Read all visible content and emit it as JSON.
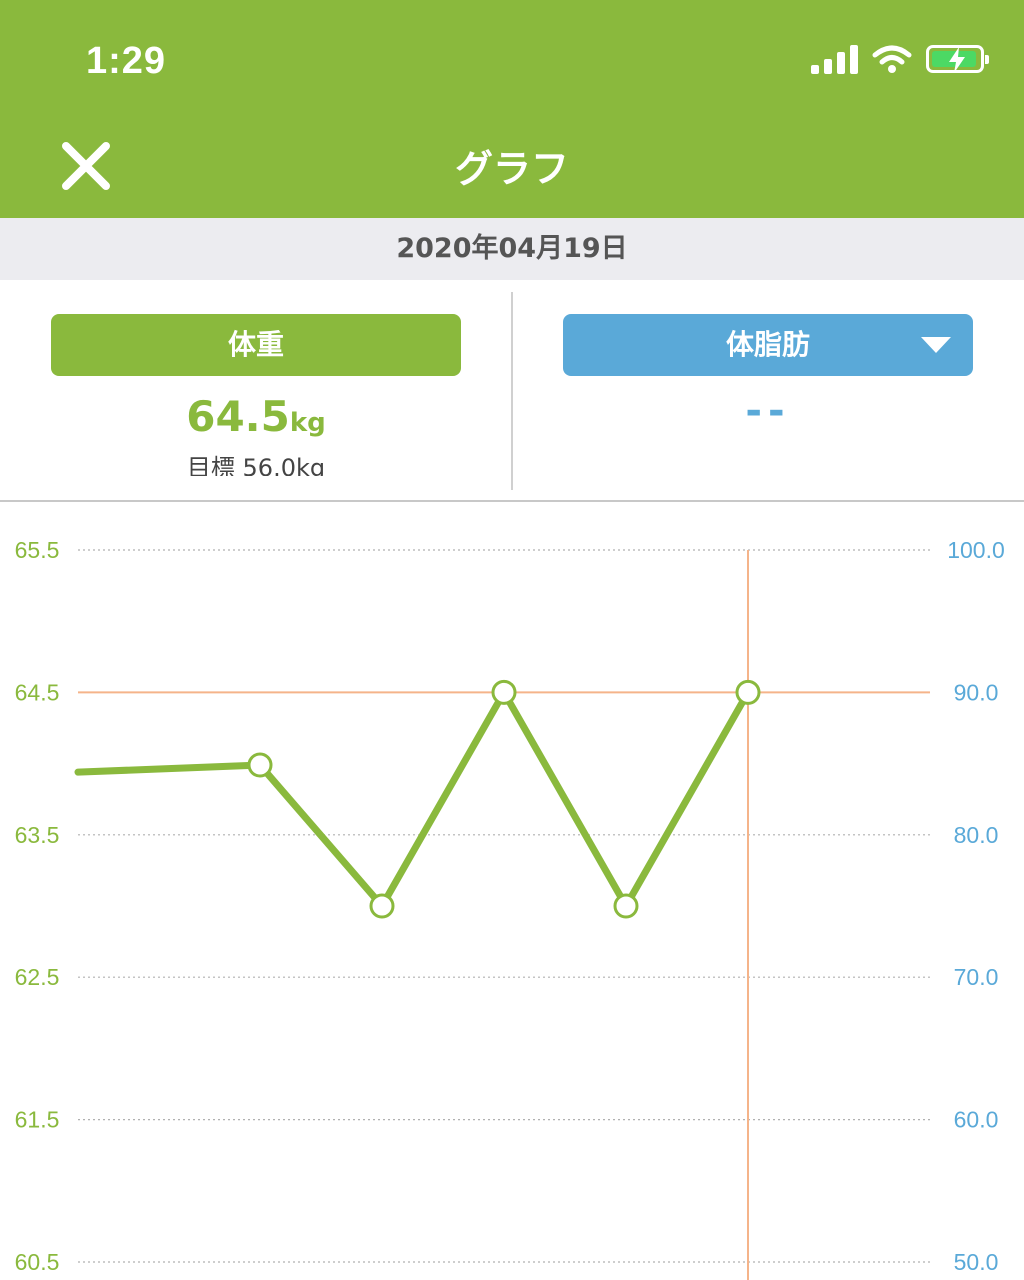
{
  "status_bar": {
    "time": "1:29",
    "icons": [
      "cellular-signal-icon",
      "wifi-icon",
      "battery-charging-icon"
    ]
  },
  "nav": {
    "title": "グラフ",
    "close_icon": "close-icon"
  },
  "date": "2020年04月19日",
  "summary": {
    "left": {
      "label": "体重",
      "value": "64.5",
      "unit": "kg",
      "goal_label": "目標",
      "goal_value": "56.0kg"
    },
    "right": {
      "label": "体脂肪",
      "value": "--",
      "dropdown_icon": "dropdown-triangle-icon"
    }
  },
  "colors": {
    "brand_green": "#8ab93d",
    "fat_blue": "#5aa9d8",
    "highlight_orange": "#f5b48a"
  },
  "chart_data": {
    "type": "line",
    "title": "",
    "xlabel": "",
    "ylabel": "",
    "left_axis": {
      "ticks": [
        "65.5",
        "64.5",
        "63.5",
        "62.5",
        "61.5",
        "60.5"
      ],
      "ylim": [
        60.5,
        65.5
      ]
    },
    "right_axis": {
      "ticks": [
        "100.0",
        "90.0",
        "80.0",
        "70.0",
        "60.0",
        "50.0"
      ],
      "ylim": [
        50.0,
        100.0
      ]
    },
    "x": [
      0,
      1,
      2,
      3,
      4,
      5
    ],
    "series": [
      {
        "values": [
          63.94,
          63.99,
          63.0,
          64.5,
          63.0,
          64.5
        ],
        "markers": [
          false,
          true,
          true,
          true,
          true,
          true
        ]
      }
    ],
    "goal_line": 64.5,
    "selected_index": 5
  }
}
